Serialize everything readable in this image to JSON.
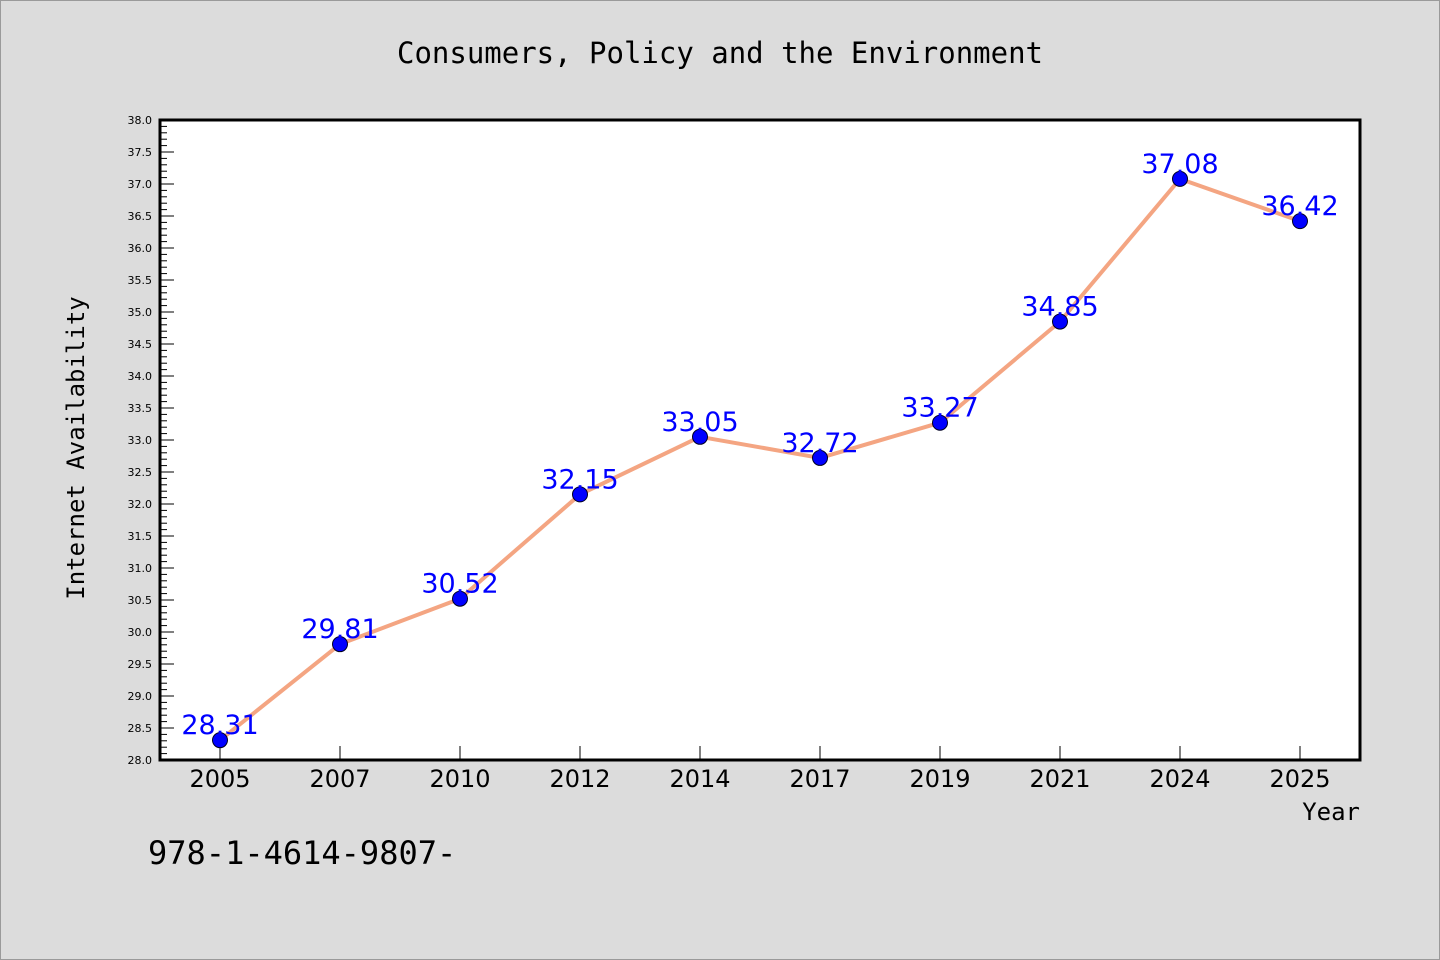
{
  "chart_data": {
    "type": "line",
    "title": "Consumers, Policy and the Environment",
    "xlabel": "Year",
    "ylabel": "Internet Availability",
    "categories": [
      "2005",
      "2007",
      "2010",
      "2012",
      "2014",
      "2017",
      "2019",
      "2021",
      "2024",
      "2025"
    ],
    "series": [
      {
        "values": [
          28.31,
          29.81,
          30.52,
          32.15,
          33.05,
          32.72,
          33.27,
          34.85,
          37.08,
          36.42
        ],
        "labels": [
          "28.31",
          "29.81",
          "30.52",
          "32.15",
          "33.05",
          "32.72",
          "33.27",
          "34.85",
          "37.08",
          "36.42"
        ]
      }
    ],
    "ylim": [
      28.0,
      38.0
    ],
    "yticks": [
      "28.0",
      "28.5",
      "29.0",
      "29.5",
      "30.0",
      "30.5",
      "31.0",
      "31.5",
      "32.0",
      "32.5",
      "33.0",
      "33.5",
      "34.0",
      "34.5",
      "35.0",
      "35.5",
      "36.0",
      "36.5",
      "37.0",
      "37.5",
      "38.0"
    ],
    "grid": false,
    "legend": "none",
    "colors": {
      "line": "#f4a582",
      "marker": "#0000ff",
      "data_label": "#0000ff",
      "plot_background": "#ffffff",
      "page_background": "#dcdcdc"
    }
  },
  "footer": {
    "isbn_text": "978-1-4614-9807-"
  }
}
